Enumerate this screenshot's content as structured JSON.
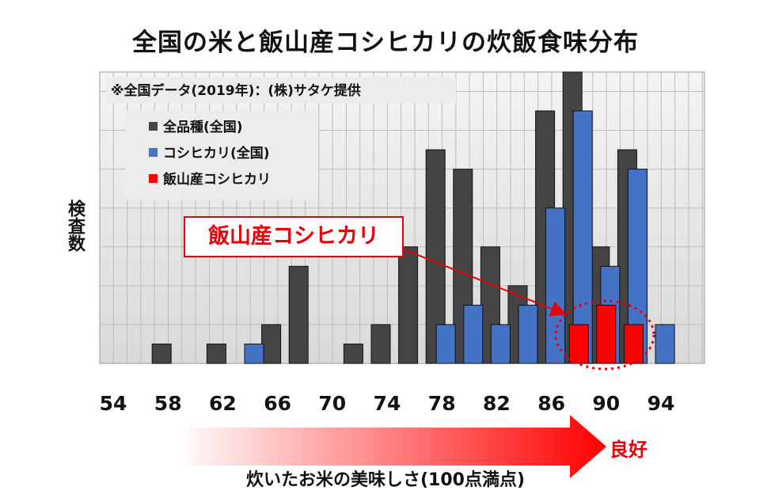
{
  "title": "全国の米と飯山産コシヒカリの炊飯食味分布",
  "note": "※全国データ(2019年)：(株)サタケ提供",
  "callout": "飯山産コシヒカリ",
  "good_label": "良好",
  "colors": {
    "all": "#444444",
    "koshi": "#4472c4",
    "iiyama": "#ff0000",
    "accent": "#e8000b"
  },
  "chart_data": {
    "type": "bar",
    "title": "全国の米と飯山産コシヒカリの炊飯食味分布",
    "xlabel": "炊いたお米の美味しさ(100点満点)",
    "ylabel": "検査数",
    "categories": [
      56,
      58,
      60,
      62,
      64,
      66,
      68,
      70,
      72,
      74,
      76,
      78,
      80,
      82,
      84,
      86,
      88,
      90,
      92,
      94
    ],
    "x_ticks": [
      "54",
      "58",
      "62",
      "66",
      "70",
      "74",
      "78",
      "82",
      "86",
      "90",
      "94"
    ],
    "ylim": [
      0,
      15
    ],
    "grid": true,
    "legend_position": "top-left",
    "series": [
      {
        "name": "全品種(全国)",
        "values": [
          0,
          1,
          0,
          1,
          0,
          2,
          5,
          0,
          1,
          2,
          6,
          11,
          10,
          6,
          4,
          13,
          15,
          6,
          11,
          0
        ]
      },
      {
        "name": "コシヒカリ(全国)",
        "values": [
          0,
          0,
          0,
          0,
          1,
          0,
          0,
          0,
          0,
          0,
          0,
          2,
          3,
          2,
          3,
          8,
          13,
          5,
          10,
          2
        ]
      },
      {
        "name": "飯山産コシヒカリ",
        "values": [
          0,
          0,
          0,
          0,
          0,
          0,
          0,
          0,
          0,
          0,
          0,
          0,
          0,
          0,
          0,
          0,
          2,
          3,
          2,
          0
        ]
      }
    ]
  }
}
